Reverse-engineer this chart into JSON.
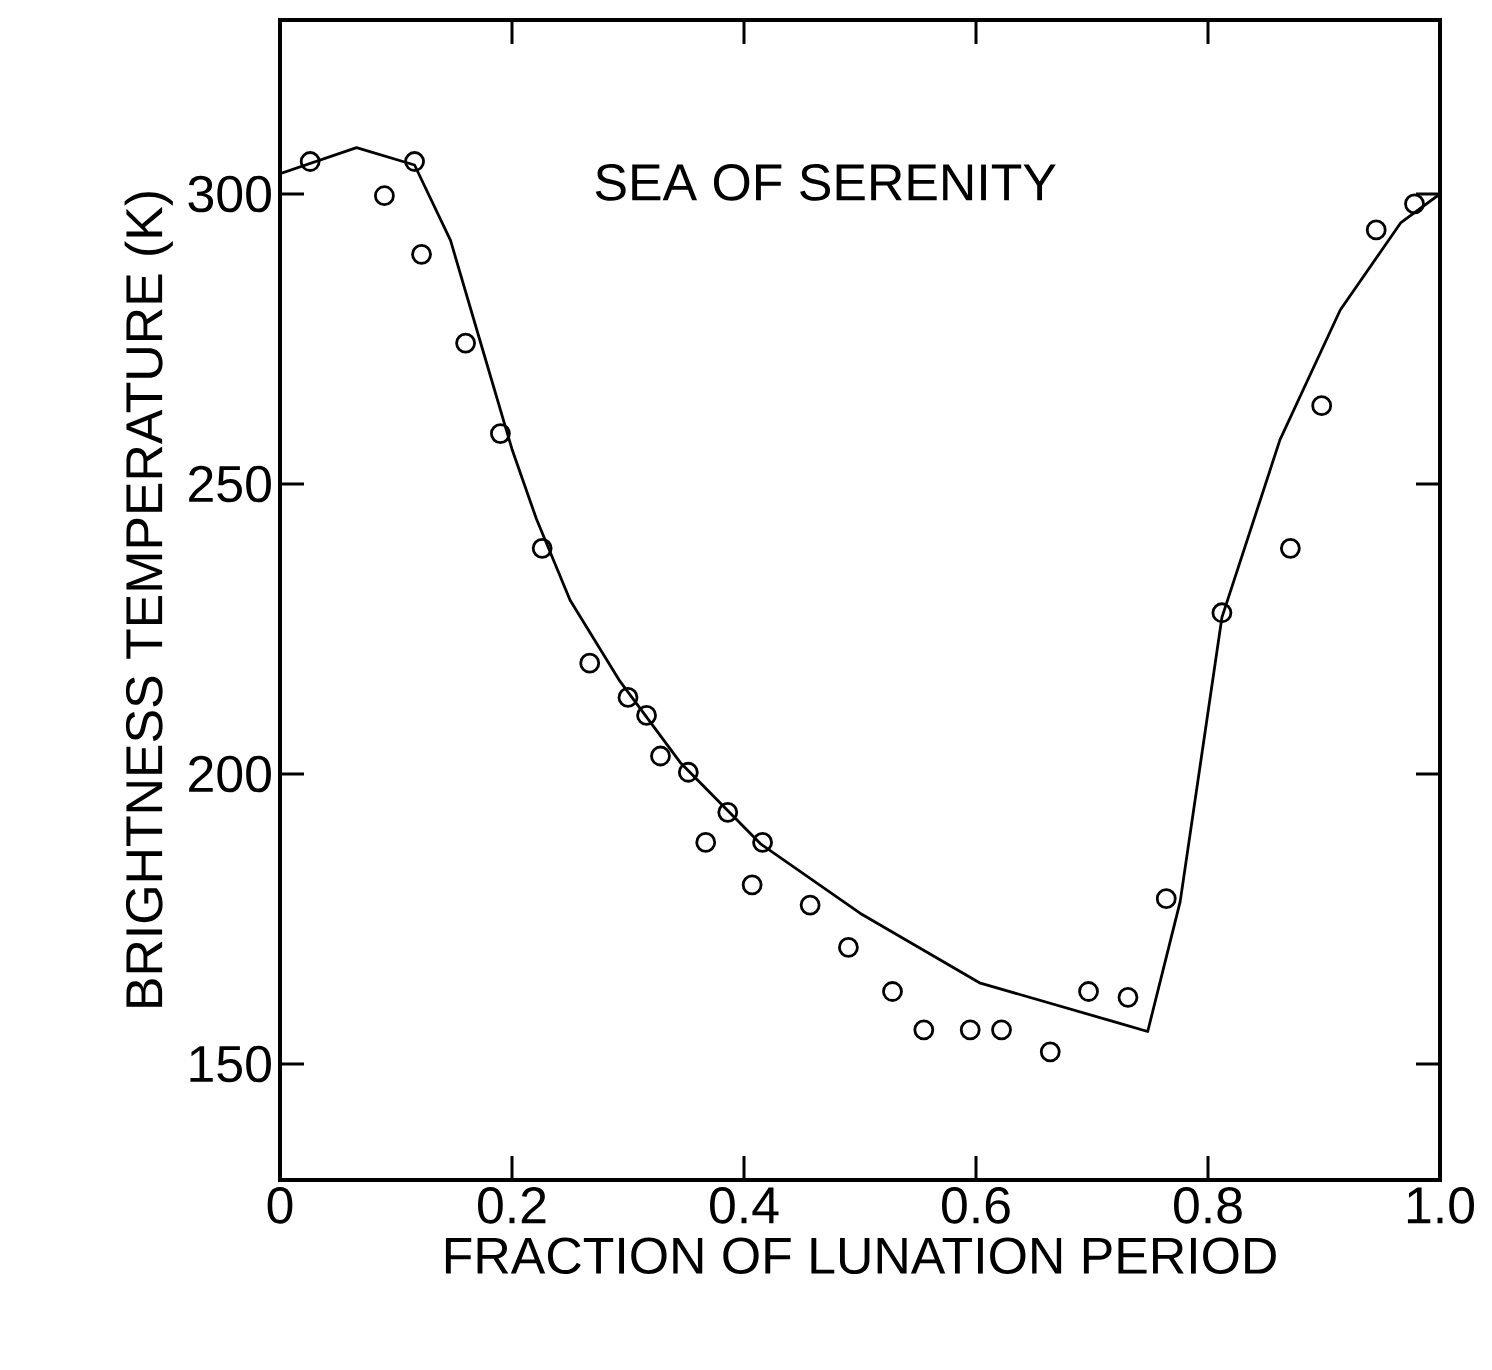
{
  "chart_data": {
    "type": "scatter",
    "xlabel": "FRACTION OF LUNATION PERIOD",
    "ylabel": "BRIGHTNESS TEMPERATURE (K)",
    "annotations": [
      "SEA OF SERENITY"
    ],
    "xlim": [
      0,
      1.0
    ],
    "ylim": [
      130,
      330
    ],
    "xticks": [
      {
        "value": 0,
        "label": "0"
      },
      {
        "value": 0.2,
        "label": "0.2"
      },
      {
        "value": 0.4,
        "label": "0.4"
      },
      {
        "value": 0.6,
        "label": "0.6"
      },
      {
        "value": 0.8,
        "label": "0.8"
      },
      {
        "value": 1.0,
        "label": "1.0"
      }
    ],
    "yticks": [
      150,
      200,
      250,
      300
    ],
    "grid": false,
    "series": [
      {
        "color": "#000000",
        "marker": "circle",
        "x": [
          0.026,
          0.09,
          0.116,
          0.122,
          0.16,
          0.19,
          0.226,
          0.267,
          0.3,
          0.316,
          0.328,
          0.352,
          0.367,
          0.386,
          0.407,
          0.416,
          0.457,
          0.49,
          0.528,
          0.555,
          0.595,
          0.622,
          0.664,
          0.697,
          0.731,
          0.764,
          0.812,
          0.871,
          0.898,
          0.945,
          0.978
        ],
        "values": [
          305.6,
          299.7,
          305.6,
          289.6,
          274.3,
          258.7,
          238.9,
          219.1,
          213.2,
          210.1,
          203.1,
          200.3,
          188.2,
          193.4,
          180.9,
          188.2,
          177.4,
          170.1,
          162.5,
          155.9,
          155.9,
          155.9,
          152.1,
          162.5,
          161.5,
          178.5,
          227.8,
          238.9,
          263.5,
          293.8,
          298.3
        ]
      },
      {
        "type": "line",
        "color": "#000000",
        "marker": "none",
        "line_style": "solid",
        "x": [
          0,
          0.066,
          0.116,
          0.147,
          0.172,
          0.2,
          0.221,
          0.25,
          0.293,
          0.345,
          0.414,
          0.5,
          0.603,
          0.724,
          0.748,
          0.776,
          0.812,
          0.862,
          0.914,
          0.966,
          1.0
        ],
        "values": [
          303.5,
          308,
          305,
          292,
          275,
          256,
          244,
          230,
          216,
          202,
          188,
          176,
          164,
          157,
          155.6,
          178,
          227,
          257.6,
          280,
          295,
          300
        ]
      }
    ]
  }
}
